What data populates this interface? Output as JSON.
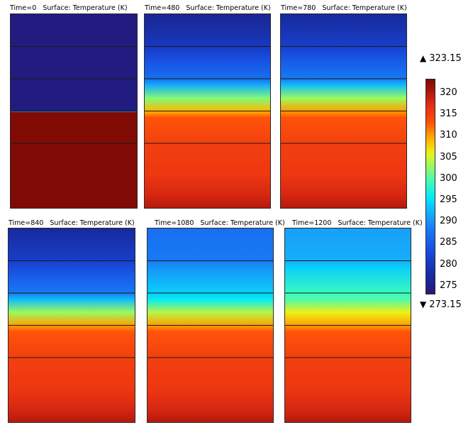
{
  "chart_data": {
    "type": "heatmap",
    "quantity": "Surface: Temperature (K)",
    "colorbar": {
      "min": 273.15,
      "max": 323.15,
      "min_label": "273.15",
      "max_label": "323.15",
      "ticks": [
        "275",
        "280",
        "285",
        "290",
        "295",
        "300",
        "305",
        "310",
        "315",
        "320"
      ],
      "tick_values": [
        275,
        280,
        285,
        290,
        295,
        300,
        305,
        310,
        315,
        320
      ],
      "colormap": "rainbow"
    },
    "panels": [
      {
        "time": "Time=0",
        "title": "Time=0   Surface: Temperature (K)",
        "profile": [
          [
            0,
            274
          ],
          [
            0.9,
            274
          ],
          [
            1,
            274
          ],
          [
            1.8,
            274
          ],
          [
            2,
            274
          ],
          [
            2.8,
            274
          ],
          [
            3,
            274
          ],
          [
            3.02,
            290
          ],
          [
            3.04,
            323
          ],
          [
            5.4,
            323
          ],
          [
            6,
            323
          ]
        ]
      },
      {
        "time": "Time=480",
        "title": "Time=480   Surface: Temperature (K)",
        "profile": [
          [
            0,
            276
          ],
          [
            1,
            280
          ],
          [
            1.1,
            281
          ],
          [
            1.5,
            284
          ],
          [
            2,
            287
          ],
          [
            2.2,
            292
          ],
          [
            2.6,
            302
          ],
          [
            3,
            309
          ],
          [
            3.2,
            313
          ],
          [
            4,
            315
          ],
          [
            5,
            316
          ],
          [
            5.6,
            318
          ],
          [
            6,
            320
          ]
        ]
      },
      {
        "time": "Time=780",
        "title": "Time=780   Surface: Temperature (K)",
        "profile": [
          [
            0,
            277
          ],
          [
            1,
            281
          ],
          [
            1.1,
            282
          ],
          [
            1.5,
            285
          ],
          [
            2,
            288
          ],
          [
            2.2,
            293
          ],
          [
            2.6,
            303
          ],
          [
            3,
            310
          ],
          [
            3.2,
            313
          ],
          [
            4,
            315
          ],
          [
            5,
            316
          ],
          [
            5.6,
            318
          ],
          [
            6,
            320
          ]
        ]
      },
      {
        "time": "Time=840",
        "title": "Time=840   Surface: Temperature (K)",
        "profile": [
          [
            0,
            277
          ],
          [
            1,
            281
          ],
          [
            1.1,
            282
          ],
          [
            1.5,
            285
          ],
          [
            2,
            288
          ],
          [
            2.2,
            293
          ],
          [
            2.6,
            303
          ],
          [
            3,
            310
          ],
          [
            3.2,
            313
          ],
          [
            4,
            315
          ],
          [
            5,
            316
          ],
          [
            5.6,
            318
          ],
          [
            6,
            320
          ]
        ]
      },
      {
        "time": "Time=1080",
        "title": "Time=1080   Surface: Temperature (K)",
        "profile": [
          [
            0,
            287
          ],
          [
            1,
            288
          ],
          [
            1.2,
            290
          ],
          [
            2,
            294
          ],
          [
            2.2,
            296
          ],
          [
            2.6,
            304
          ],
          [
            3,
            310
          ],
          [
            3.2,
            313
          ],
          [
            4,
            315
          ],
          [
            5,
            316
          ],
          [
            5.6,
            318
          ],
          [
            6,
            320
          ]
        ]
      },
      {
        "time": "Time=1200",
        "title": "Time=1200   Surface: Temperature (K)",
        "profile": [
          [
            0,
            291
          ],
          [
            1,
            292
          ],
          [
            1.2,
            294
          ],
          [
            2,
            299
          ],
          [
            2.2,
            300
          ],
          [
            2.6,
            306
          ],
          [
            3,
            310
          ],
          [
            3.2,
            313
          ],
          [
            4,
            315
          ],
          [
            5,
            316
          ],
          [
            5.6,
            318
          ],
          [
            6,
            320
          ]
        ]
      }
    ],
    "layer_boundaries": [
      1,
      2,
      3,
      4
    ]
  }
}
